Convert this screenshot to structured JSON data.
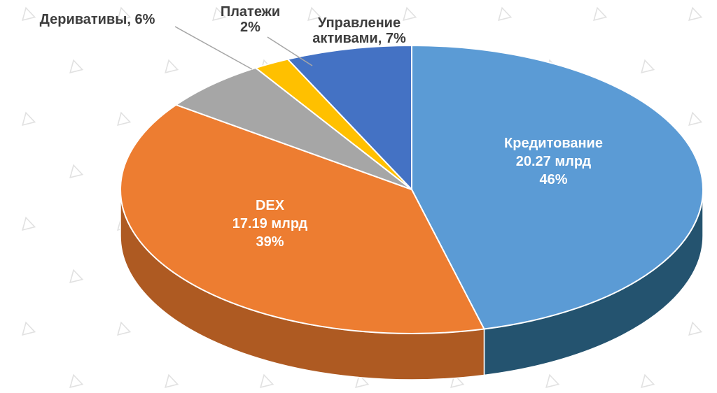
{
  "chart_data": {
    "type": "pie",
    "style": "3d",
    "title": "",
    "legend": "none",
    "background": "#FFFFFF",
    "watermark_color": "#DCDCDC",
    "slices": [
      {
        "id": "lending",
        "label": "Кредитование",
        "value": 20.27,
        "value_text": "20.27 млрд",
        "percent": 46,
        "color": "#5B9BD5",
        "side_color": "#24536F",
        "label_text": "Кредитование\n20.27 млрд\n46%",
        "label_placement": "inside"
      },
      {
        "id": "dex",
        "label": "DEX",
        "value": 17.19,
        "value_text": "17.19 млрд",
        "percent": 39,
        "color": "#ED7D31",
        "side_color": "#AE5A22",
        "label_text": "DEX\n17.19 млрд\n39%",
        "label_placement": "inside"
      },
      {
        "id": "derivatives",
        "label": "Деривативы",
        "percent": 6,
        "color": "#A6A6A6",
        "side_color": "#737373",
        "label_text": "Деривативы, 6%",
        "label_placement": "callout"
      },
      {
        "id": "payments",
        "label": "Платежи",
        "percent": 2,
        "color": "#FFC000",
        "side_color": "#B38600",
        "label_text": "Платежи\n2%",
        "label_placement": "callout"
      },
      {
        "id": "asset_management",
        "label": "Управление активами",
        "percent": 7,
        "color": "#4472C4",
        "side_color": "#2C4C85",
        "label_text": "Управление\nактивами, 7%",
        "label_placement": "callout"
      }
    ]
  }
}
